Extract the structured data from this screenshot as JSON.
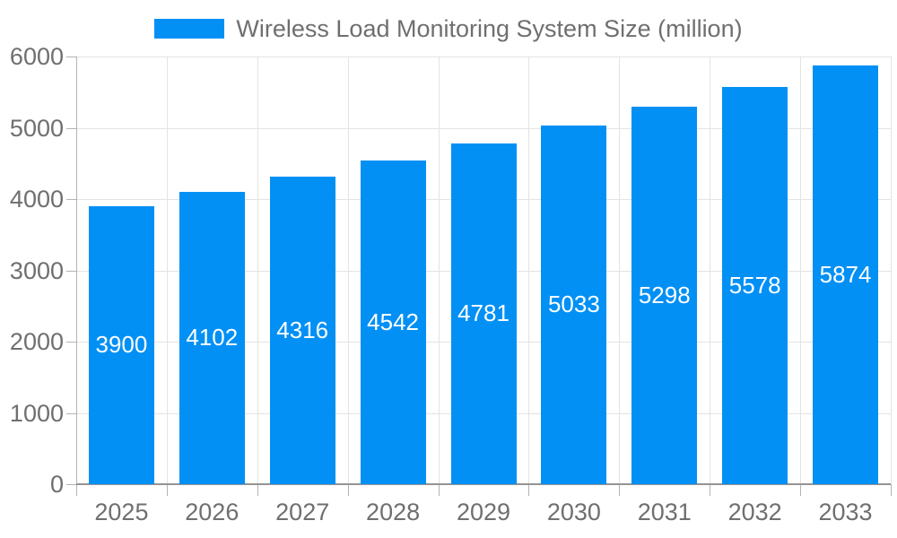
{
  "chart_data": {
    "type": "bar",
    "title": "Wireless Load Monitoring System Size (million)",
    "legend_position": "top",
    "categories": [
      "2025",
      "2026",
      "2027",
      "2028",
      "2029",
      "2030",
      "2031",
      "2032",
      "2033"
    ],
    "series": [
      {
        "name": "Wireless Load Monitoring System Size (million)",
        "values": [
          3900,
          4102,
          4316,
          4542,
          4781,
          5033,
          5298,
          5578,
          5874
        ]
      }
    ],
    "value_labels": "inside-center",
    "xlabel": "",
    "ylabel": "",
    "ylim": [
      0,
      6000
    ],
    "ytick_step": 1000,
    "y_tick_labels": [
      "0",
      "1000",
      "2000",
      "3000",
      "4000",
      "5000",
      "6000"
    ],
    "grid": true,
    "colors": {
      "bar": "#0290f5",
      "grid": "#e3e3e3",
      "axis": "#b3b3b3",
      "baseline": "#949494",
      "tick_label": "#6f6f6f",
      "value_label": "#ffffff"
    }
  }
}
